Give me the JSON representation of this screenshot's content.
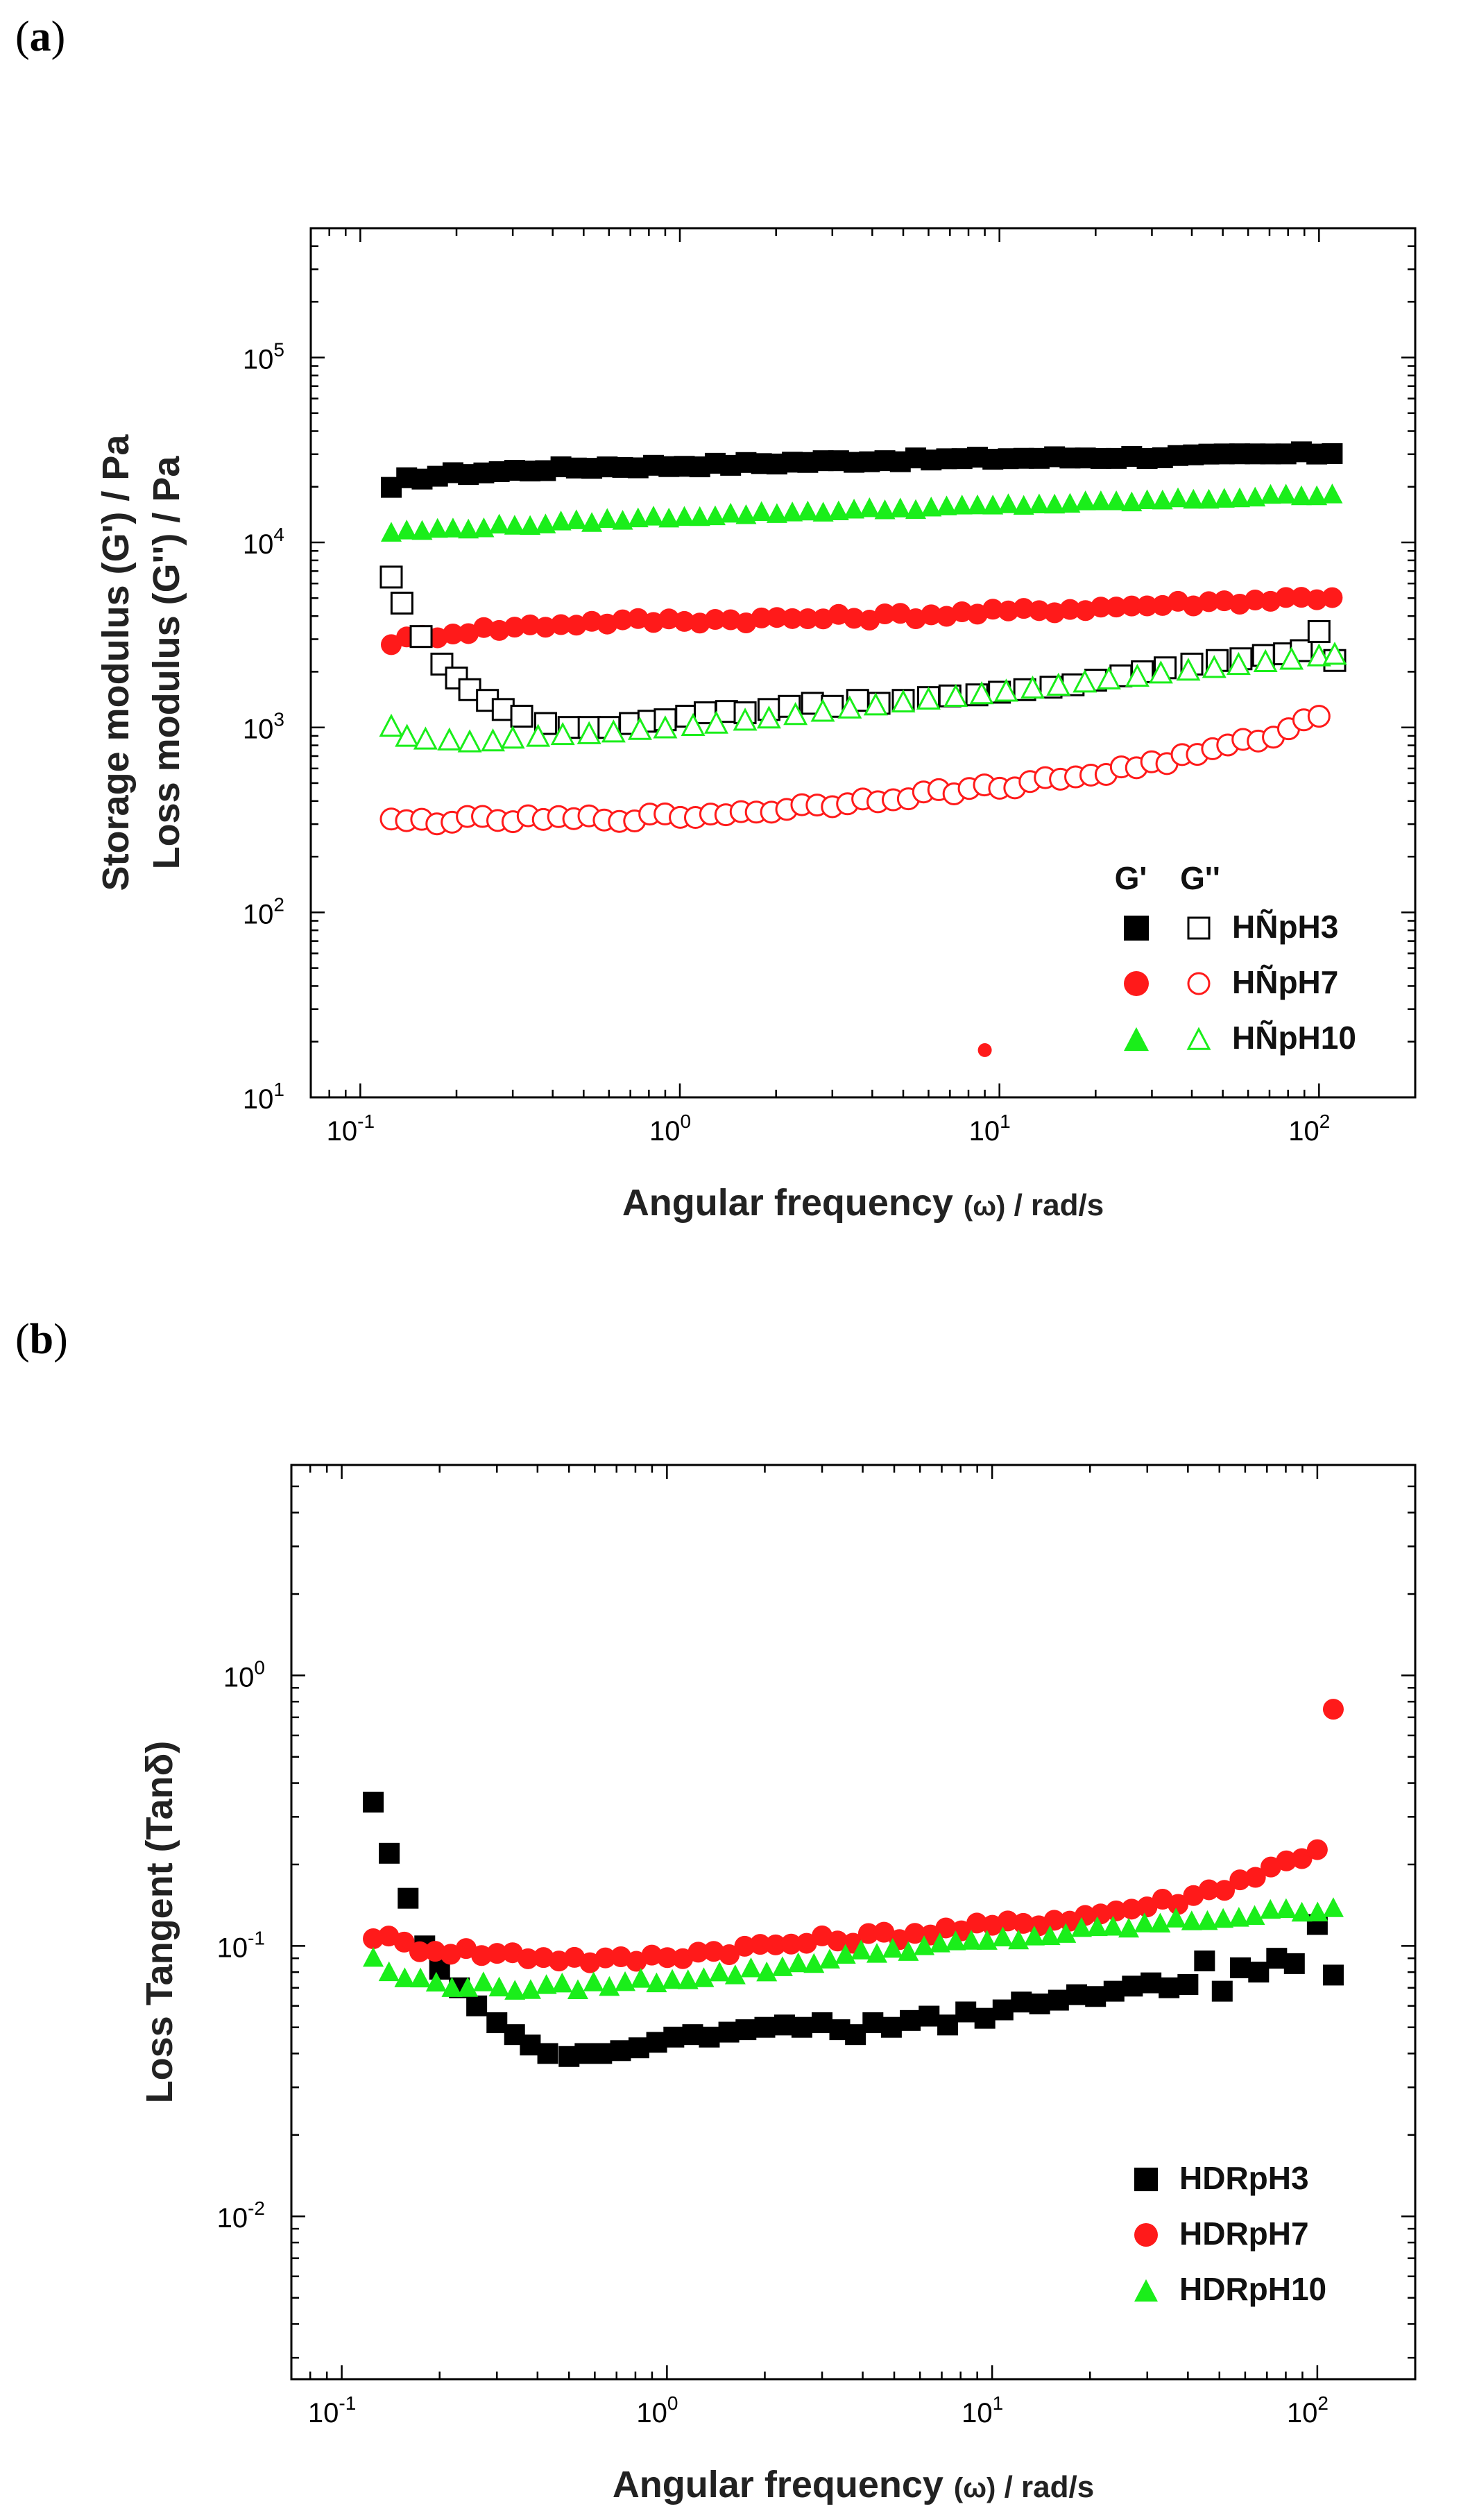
{
  "panels": [
    {
      "id": "a",
      "label": "a"
    },
    {
      "id": "b",
      "label": "b"
    }
  ],
  "chart_data": [
    {
      "type": "scatter",
      "panel": "a",
      "xscale": "log",
      "yscale": "log",
      "xlim": [
        0.07,
        200
      ],
      "ylim": [
        10,
        500000
      ],
      "xticks": [
        {
          "base": "10",
          "exp": "-1",
          "v": 0.1
        },
        {
          "base": "10",
          "exp": "0",
          "v": 1
        },
        {
          "base": "10",
          "exp": "1",
          "v": 10
        },
        {
          "base": "10",
          "exp": "2",
          "v": 100
        }
      ],
      "yticks": [
        {
          "base": "10",
          "exp": "1",
          "v": 10
        },
        {
          "base": "10",
          "exp": "2",
          "v": 100
        },
        {
          "base": "10",
          "exp": "3",
          "v": 1000
        },
        {
          "base": "10",
          "exp": "4",
          "v": 10000
        },
        {
          "base": "10",
          "exp": "5",
          "v": 100000
        }
      ],
      "xlabel": {
        "main": "Angular frequency ",
        "omega": "(ω)",
        "unit": " / rad/s"
      },
      "ylabel": {
        "line1": "Storage modulus (G') / Pa",
        "line2": "Loss modulus (G'') / Pa"
      },
      "legend": {
        "position": "bottom-right",
        "header_filled": "G'",
        "header_open": "G''",
        "entries": [
          "HÑpH3",
          "HÑpH7",
          "HÑpH10"
        ]
      },
      "series": [
        {
          "name": "HÑpH3 G'",
          "marker": "square",
          "filled": true,
          "color": "#000000",
          "anchors": [
            [
              0.125,
              19500
            ],
            [
              0.14,
              22000
            ],
            [
              0.2,
              23500
            ],
            [
              0.5,
              25500
            ],
            [
              1,
              26000
            ],
            [
              3,
              27500
            ],
            [
              10,
              28500
            ],
            [
              30,
              29000
            ],
            [
              110,
              30500
            ]
          ],
          "noise": 0.01
        },
        {
          "name": "HÑpH7 G'",
          "marker": "circle",
          "filled": true,
          "color": "#ff1a1a",
          "anchors": [
            [
              0.125,
              2900
            ],
            [
              0.2,
              3300
            ],
            [
              0.5,
              3700
            ],
            [
              1,
              3800
            ],
            [
              3,
              3900
            ],
            [
              10,
              4200
            ],
            [
              30,
              4600
            ],
            [
              110,
              5100
            ]
          ],
          "noise": 0.02
        },
        {
          "name": "HÑpH10 G'",
          "marker": "triangle",
          "filled": true,
          "color": "#1aee1a",
          "anchors": [
            [
              0.125,
              11500
            ],
            [
              0.3,
              12500
            ],
            [
              1,
              14000
            ],
            [
              3,
              15000
            ],
            [
              10,
              16000
            ],
            [
              30,
              17000
            ],
            [
              110,
              18500
            ]
          ],
          "noise": 0.01
        },
        {
          "name": "HÑpH3 G''",
          "marker": "square",
          "filled": false,
          "color": "#000000",
          "points": [
            [
              0.125,
              6500
            ],
            [
              0.135,
              4700
            ],
            [
              0.155,
              3100
            ],
            [
              0.18,
              2200
            ],
            [
              0.2,
              1850
            ],
            [
              0.22,
              1600
            ],
            [
              0.25,
              1400
            ],
            [
              0.28,
              1250
            ],
            [
              0.32,
              1150
            ],
            [
              0.38,
              1050
            ],
            [
              0.45,
              1000
            ],
            [
              0.52,
              1000
            ],
            [
              0.6,
              1000
            ],
            [
              0.7,
              1050
            ],
            [
              0.8,
              1080
            ],
            [
              0.9,
              1100
            ],
            [
              1.05,
              1150
            ],
            [
              1.2,
              1200
            ],
            [
              1.4,
              1220
            ],
            [
              1.6,
              1200
            ],
            [
              1.9,
              1250
            ],
            [
              2.2,
              1300
            ],
            [
              2.6,
              1350
            ],
            [
              3.0,
              1300
            ],
            [
              3.6,
              1400
            ],
            [
              4.2,
              1350
            ],
            [
              5,
              1400
            ],
            [
              6,
              1450
            ],
            [
              7,
              1480
            ],
            [
              8.5,
              1500
            ],
            [
              10,
              1550
            ],
            [
              12,
              1600
            ],
            [
              14.5,
              1650
            ],
            [
              17,
              1700
            ],
            [
              20,
              1800
            ],
            [
              24,
              1900
            ],
            [
              28,
              2000
            ],
            [
              33,
              2100
            ],
            [
              40,
              2200
            ],
            [
              48,
              2300
            ],
            [
              57,
              2350
            ],
            [
              67,
              2450
            ],
            [
              78,
              2500
            ],
            [
              88,
              2600
            ],
            [
              100,
              3300
            ],
            [
              112,
              2300
            ]
          ]
        },
        {
          "name": "HÑpH7 G''",
          "marker": "circle",
          "filled": false,
          "color": "#ff1a1a",
          "anchors": [
            [
              0.125,
              310
            ],
            [
              0.2,
              315
            ],
            [
              0.5,
              320
            ],
            [
              1,
              330
            ],
            [
              2,
              360
            ],
            [
              4,
              410
            ],
            [
              10,
              480
            ],
            [
              20,
              560
            ],
            [
              40,
              700
            ],
            [
              70,
              900
            ],
            [
              100,
              1150
            ]
          ],
          "noise": 0.02
        },
        {
          "name": "HÑpH10 G''",
          "marker": "triangle",
          "filled": false,
          "color": "#1aee1a",
          "points": [
            [
              0.125,
              1020
            ],
            [
              0.14,
              900
            ],
            [
              0.16,
              870
            ],
            [
              0.19,
              860
            ],
            [
              0.22,
              840
            ],
            [
              0.26,
              850
            ],
            [
              0.3,
              880
            ],
            [
              0.36,
              900
            ],
            [
              0.43,
              920
            ],
            [
              0.52,
              930
            ],
            [
              0.62,
              950
            ],
            [
              0.75,
              980
            ],
            [
              0.9,
              1000
            ],
            [
              1.1,
              1030
            ],
            [
              1.3,
              1060
            ],
            [
              1.6,
              1100
            ],
            [
              1.9,
              1130
            ],
            [
              2.3,
              1180
            ],
            [
              2.8,
              1230
            ],
            [
              3.4,
              1280
            ],
            [
              4.1,
              1330
            ],
            [
              5,
              1380
            ],
            [
              6,
              1430
            ],
            [
              7.3,
              1480
            ],
            [
              8.8,
              1530
            ],
            [
              10.5,
              1580
            ],
            [
              12.7,
              1640
            ],
            [
              15.3,
              1700
            ],
            [
              18.5,
              1770
            ],
            [
              22,
              1840
            ],
            [
              27,
              1900
            ],
            [
              32,
              1980
            ],
            [
              39,
              2050
            ],
            [
              47,
              2120
            ],
            [
              56,
              2200
            ],
            [
              68,
              2280
            ],
            [
              82,
              2350
            ],
            [
              100,
              2450
            ],
            [
              112,
              2500
            ]
          ]
        }
      ],
      "outliers": [
        {
          "x": 9,
          "y": 18,
          "color": "#ff1a1a",
          "marker": "dot"
        }
      ]
    },
    {
      "type": "scatter",
      "panel": "b",
      "xscale": "log",
      "yscale": "log",
      "xlim": [
        0.07,
        200
      ],
      "ylim": [
        0.0025,
        6
      ],
      "xticks": [
        {
          "base": "10",
          "exp": "-1",
          "v": 0.1
        },
        {
          "base": "10",
          "exp": "0",
          "v": 1
        },
        {
          "base": "10",
          "exp": "1",
          "v": 10
        },
        {
          "base": "10",
          "exp": "2",
          "v": 100
        }
      ],
      "yticks": [
        {
          "base": "10",
          "exp": "-2",
          "v": 0.01
        },
        {
          "base": "10",
          "exp": "-1",
          "v": 0.1
        },
        {
          "base": "10",
          "exp": "0",
          "v": 1
        }
      ],
      "xlabel": {
        "main": "Angular frequency ",
        "omega": "(ω)",
        "unit": " / rad/s"
      },
      "ylabel": {
        "line1": "Loss Tangent (Tanδ)"
      },
      "legend": {
        "position": "bottom-right",
        "entries": [
          "HDRpH3",
          "HDRpH7",
          "HDRpH10"
        ]
      },
      "series": [
        {
          "name": "HDRpH3",
          "marker": "square",
          "filled": true,
          "color": "#000000",
          "points": [
            [
              0.125,
              0.34
            ],
            [
              0.14,
              0.22
            ],
            [
              0.16,
              0.15
            ],
            [
              0.18,
              0.1
            ],
            [
              0.2,
              0.082
            ],
            [
              0.23,
              0.07
            ],
            [
              0.26,
              0.06
            ],
            [
              0.3,
              0.052
            ],
            [
              0.34,
              0.047
            ],
            [
              0.38,
              0.043
            ],
            [
              0.43,
              0.04
            ],
            [
              0.5,
              0.039
            ],
            [
              0.56,
              0.04
            ],
            [
              0.63,
              0.04
            ],
            [
              0.72,
              0.041
            ],
            [
              0.82,
              0.042
            ],
            [
              0.93,
              0.044
            ],
            [
              1.05,
              0.046
            ],
            [
              1.2,
              0.047
            ],
            [
              1.35,
              0.046
            ],
            [
              1.55,
              0.048
            ],
            [
              1.75,
              0.049
            ],
            [
              2.0,
              0.05
            ],
            [
              2.3,
              0.051
            ],
            [
              2.6,
              0.05
            ],
            [
              3.0,
              0.052
            ],
            [
              3.4,
              0.049
            ],
            [
              3.8,
              0.047
            ],
            [
              4.3,
              0.052
            ],
            [
              4.9,
              0.05
            ],
            [
              5.6,
              0.053
            ],
            [
              6.4,
              0.055
            ],
            [
              7.3,
              0.051
            ],
            [
              8.3,
              0.057
            ],
            [
              9.5,
              0.054
            ],
            [
              10.8,
              0.058
            ],
            [
              12.3,
              0.062
            ],
            [
              14,
              0.061
            ],
            [
              16,
              0.063
            ],
            [
              18.2,
              0.066
            ],
            [
              20.8,
              0.065
            ],
            [
              23.7,
              0.068
            ],
            [
              27,
              0.071
            ],
            [
              30.8,
              0.073
            ],
            [
              35,
              0.07
            ],
            [
              40,
              0.072
            ],
            [
              45,
              0.088
            ],
            [
              51,
              0.068
            ],
            [
              58,
              0.083
            ],
            [
              66,
              0.08
            ],
            [
              75,
              0.09
            ],
            [
              85,
              0.086
            ],
            [
              100,
              0.12
            ],
            [
              112,
              0.078
            ]
          ]
        },
        {
          "name": "HDRpH7",
          "marker": "circle",
          "filled": true,
          "color": "#ff1a1a",
          "anchors": [
            [
              0.125,
              0.11
            ],
            [
              0.16,
              0.1
            ],
            [
              0.25,
              0.095
            ],
            [
              0.5,
              0.09
            ],
            [
              0.7,
              0.088
            ],
            [
              1,
              0.092
            ],
            [
              2,
              0.1
            ],
            [
              5,
              0.11
            ],
            [
              10,
              0.118
            ],
            [
              20,
              0.13
            ],
            [
              40,
              0.15
            ],
            [
              70,
              0.19
            ],
            [
              100,
              0.23
            ]
          ],
          "noise": 0.02,
          "extra": [
            [
              112,
              0.75
            ]
          ]
        },
        {
          "name": "HDRpH10",
          "marker": "triangle",
          "filled": true,
          "color": "#1aee1a",
          "anchors": [
            [
              0.125,
              0.092
            ],
            [
              0.14,
              0.079
            ],
            [
              0.2,
              0.073
            ],
            [
              0.4,
              0.07
            ],
            [
              0.6,
              0.072
            ],
            [
              1,
              0.076
            ],
            [
              2,
              0.082
            ],
            [
              3,
              0.09
            ],
            [
              5,
              0.098
            ],
            [
              10,
              0.105
            ],
            [
              20,
              0.115
            ],
            [
              40,
              0.125
            ],
            [
              70,
              0.133
            ],
            [
              112,
              0.14
            ]
          ],
          "noise": 0.015
        }
      ]
    }
  ]
}
